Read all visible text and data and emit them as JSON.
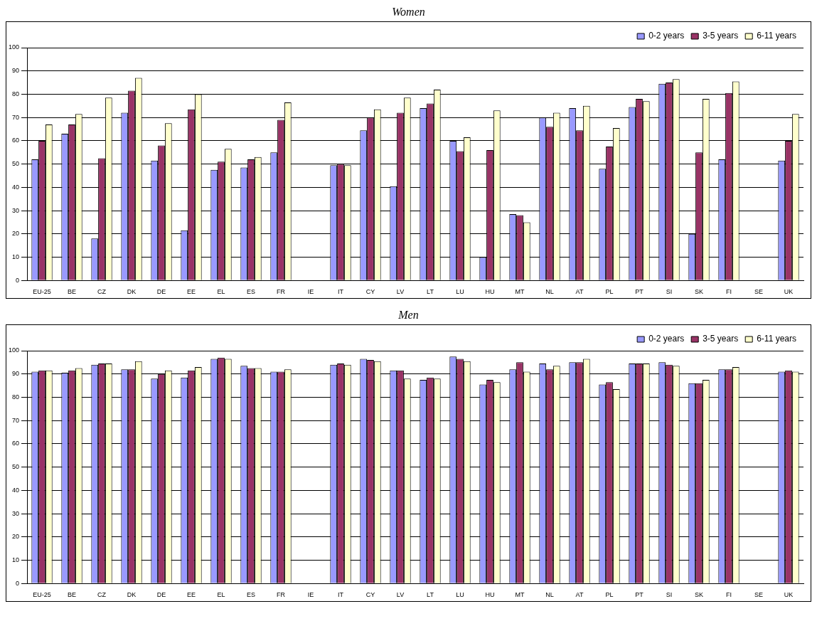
{
  "chart_data": [
    {
      "type": "bar",
      "title": "Women",
      "categories": [
        "EU-25",
        "BE",
        "CZ",
        "DK",
        "DE",
        "EE",
        "EL",
        "ES",
        "FR",
        "IE",
        "IT",
        "CY",
        "LV",
        "LT",
        "LU",
        "HU",
        "MT",
        "NL",
        "AT",
        "PL",
        "PT",
        "SI",
        "SK",
        "FI",
        "SE",
        "UK"
      ],
      "series": [
        {
          "name": "0-2 years",
          "color": "#9999ff",
          "values": [
            52,
            63,
            18,
            72,
            51.5,
            21.5,
            47.5,
            48.5,
            55,
            null,
            49.5,
            64.5,
            40.5,
            74,
            60,
            10,
            28.5,
            70,
            74,
            48,
            74.5,
            84.5,
            20,
            52,
            null,
            51.5
          ]
        },
        {
          "name": "3-5 years",
          "color": "#993366",
          "values": [
            60,
            67,
            52.5,
            81.5,
            58,
            73.5,
            51,
            52,
            69,
            null,
            50,
            70,
            72,
            76,
            55.5,
            56,
            28,
            66,
            64.5,
            57.5,
            78,
            85,
            55,
            80.5,
            null,
            60
          ]
        },
        {
          "name": "6-11 years",
          "color": "#ffffcc",
          "values": [
            67,
            71.5,
            78.5,
            87,
            67.5,
            80,
            56.5,
            53,
            76.5,
            null,
            49.5,
            73.5,
            78.5,
            82,
            61.5,
            73,
            25,
            72,
            75,
            65.5,
            77,
            86.5,
            78,
            85.5,
            null,
            71.5
          ]
        }
      ],
      "ylim": [
        0,
        100
      ],
      "yticks": [
        0,
        10,
        20,
        30,
        40,
        50,
        60,
        70,
        80,
        90,
        100
      ],
      "grid": "y",
      "legend": "top right"
    },
    {
      "type": "bar",
      "title": "Men",
      "categories": [
        "EU-25",
        "BE",
        "CZ",
        "DK",
        "DE",
        "EE",
        "EL",
        "ES",
        "FR",
        "IE",
        "IT",
        "CY",
        "LV",
        "LT",
        "LU",
        "HU",
        "MT",
        "NL",
        "AT",
        "PL",
        "PT",
        "SI",
        "SK",
        "FI",
        "SE",
        "UK"
      ],
      "series": [
        {
          "name": "0-2 years",
          "color": "#9999ff",
          "values": [
            91,
            90.5,
            94,
            92,
            88,
            88.5,
            96.5,
            93.5,
            91,
            null,
            94,
            96.5,
            91.5,
            87.5,
            97.5,
            85.5,
            92,
            94.5,
            95,
            85.5,
            94.5,
            95,
            86,
            92,
            null,
            91
          ]
        },
        {
          "name": "3-5 years",
          "color": "#993366",
          "values": [
            91.5,
            91.5,
            94.5,
            92,
            90,
            91.5,
            97,
            92.5,
            91,
            null,
            94.5,
            96,
            91.5,
            88.5,
            96.5,
            87.5,
            95,
            92,
            95,
            86.5,
            94.5,
            94,
            86,
            92,
            null,
            91.5
          ]
        },
        {
          "name": "6-11 years",
          "color": "#ffffcc",
          "values": [
            91.5,
            92.5,
            94.5,
            95.5,
            91.5,
            93,
            96.5,
            92.5,
            92,
            null,
            94,
            95.5,
            88,
            88,
            95.5,
            86.5,
            91,
            93.5,
            96.5,
            83.5,
            94.5,
            93.5,
            87.5,
            93,
            null,
            91
          ]
        }
      ],
      "ylim": [
        0,
        100
      ],
      "yticks": [
        0,
        10,
        20,
        30,
        40,
        50,
        60,
        70,
        80,
        90,
        100
      ],
      "grid": "y",
      "legend": "top right"
    }
  ]
}
